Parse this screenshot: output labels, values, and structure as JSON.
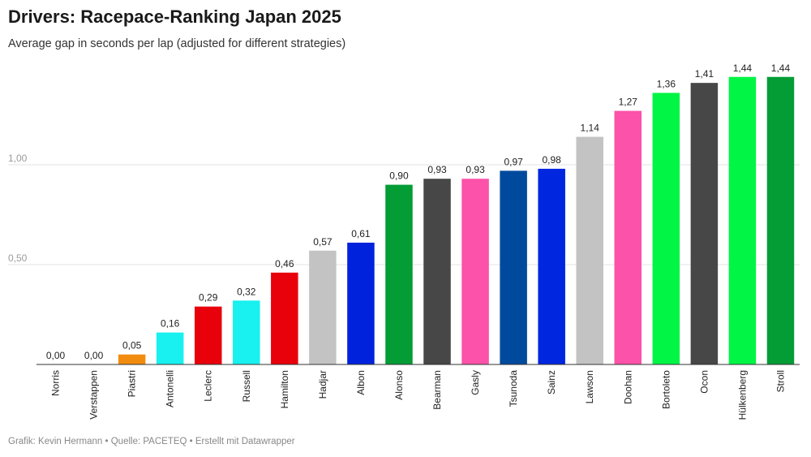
{
  "chart_data": {
    "type": "bar",
    "title": "Drivers: Racepace-Ranking Japan 2025",
    "subtitle": "Average gap in seconds per lap (adjusted for different strategies)",
    "xlabel": "",
    "ylabel": "",
    "ylim": [
      0,
      1.5
    ],
    "yticks": [
      {
        "value": 0.5,
        "label": "0,50"
      },
      {
        "value": 1.0,
        "label": "1,00"
      }
    ],
    "categories": [
      "Norris",
      "Verstappen",
      "Piastri",
      "Antonelli",
      "Leclerc",
      "Russell",
      "Hamilton",
      "Hadjar",
      "Albon",
      "Alonso",
      "Bearman",
      "Gasly",
      "Tsunoda",
      "Sainz",
      "Lawson",
      "Doohan",
      "Bortoleto",
      "Ocon",
      "Hülkenberg",
      "Stroll"
    ],
    "values": [
      0.0,
      0.0,
      0.05,
      0.16,
      0.29,
      0.32,
      0.46,
      0.57,
      0.61,
      0.9,
      0.93,
      0.93,
      0.97,
      0.98,
      1.14,
      1.27,
      1.36,
      1.41,
      1.44,
      1.44
    ],
    "value_labels": [
      "0,00",
      "0,00",
      "0,05",
      "0,16",
      "0,29",
      "0,32",
      "0,46",
      "0,57",
      "0,61",
      "0,90",
      "0,93",
      "0,93",
      "0,97",
      "0,98",
      "1,14",
      "1,27",
      "1,36",
      "1,41",
      "1,44",
      "1,44"
    ],
    "colors": [
      "#ff8000",
      "#1e41ff",
      "#f28c0f",
      "#19f0f0",
      "#e8000b",
      "#19f0f0",
      "#e8000b",
      "#c3c3c3",
      "#0022dd",
      "#049c35",
      "#474747",
      "#fc52a9",
      "#004a9e",
      "#0026e0",
      "#c3c3c3",
      "#fc52a9",
      "#00f545",
      "#474747",
      "#00f545",
      "#049c35"
    ],
    "grid": true
  },
  "footer": "Grafik: Kevin Hermann • Quelle: PACETEQ • Erstellt mit Datawrapper"
}
